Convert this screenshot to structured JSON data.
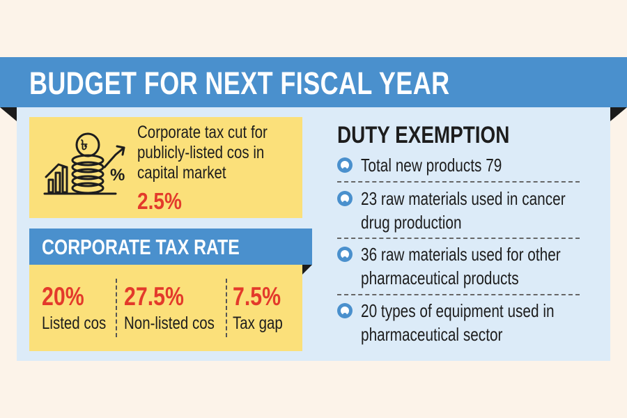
{
  "header": {
    "title": "BUDGET FOR NEXT FISCAL YEAR"
  },
  "tax_cut": {
    "lines": [
      "Corporate tax cut for",
      "publicly-listed cos in",
      "capital market"
    ],
    "value": "2.5%",
    "icon": "coin-stack-growth-icon",
    "coin_symbol": "৳",
    "percent_symbol": "%"
  },
  "corporate_tax_rate": {
    "title": "CORPORATE TAX RATE",
    "columns": [
      {
        "value": "20%",
        "label": "Listed cos"
      },
      {
        "value": "27.5%",
        "label": "Non-listed cos"
      },
      {
        "value": "7.5%",
        "label": "Tax gap"
      }
    ]
  },
  "duty_exemption": {
    "title": "DUTY EXEMPTION",
    "items": [
      {
        "lines": [
          "Total new products 79"
        ]
      },
      {
        "lines": [
          "23 raw materials used in cancer",
          "drug production"
        ]
      },
      {
        "lines": [
          "36 raw materials used for other",
          "pharmaceutical products"
        ]
      },
      {
        "lines": [
          "20 types of equipment used in",
          "pharmaceutical sector"
        ]
      }
    ]
  },
  "colors": {
    "banner_blue": "#4a90cd",
    "panel_blue": "#dcebf8",
    "highlight_yellow": "#fbe07a",
    "value_red": "#e33a2b",
    "background": "#fcf3e9"
  }
}
